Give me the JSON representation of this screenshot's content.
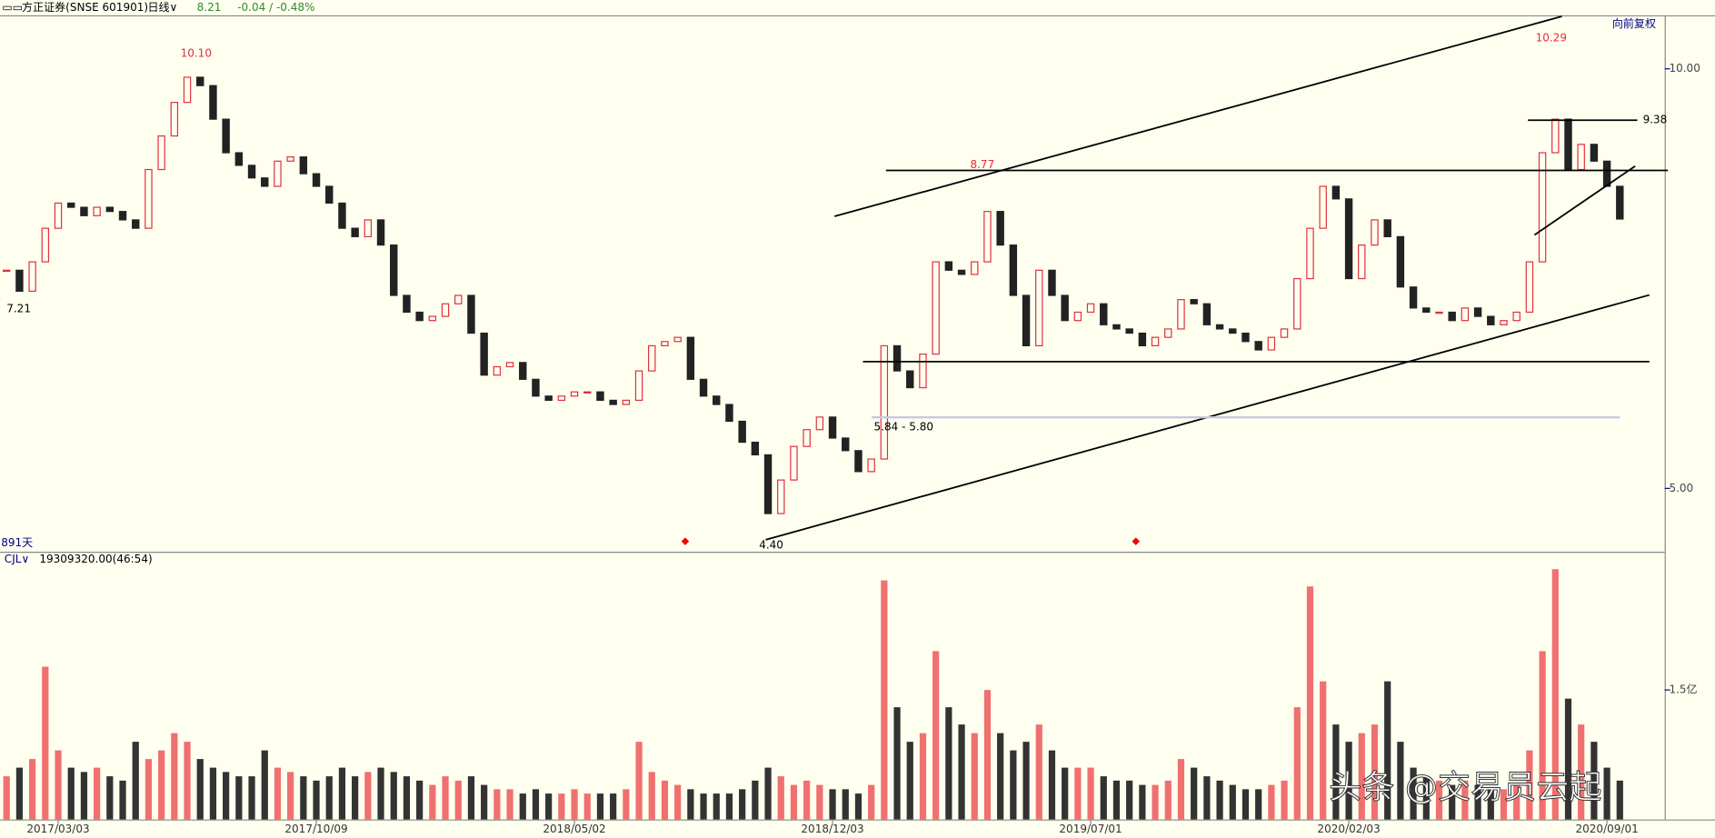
{
  "header": {
    "stock": "方正证券(SNSE 601901)",
    "period": "日线∨",
    "price": "8.21",
    "change": "-0.04 / -0.48%",
    "adjust": "向前复权",
    "days": "891天",
    "indicator": "CJL∨",
    "indicator_value": "19309320.00(46:54)"
  },
  "annotations": [
    "10.10",
    "7.21",
    "8.77",
    "10.29",
    "9.38",
    "5.84 - 5.80",
    "4.40"
  ],
  "watermark": "头条 @交易员云起",
  "chart_data": {
    "type": "candle-volume",
    "up_color": "#e0303a",
    "down_color": "#222222",
    "categories": [
      null,
      null,
      null,
      null,
      "2017/03/03",
      null,
      null,
      null,
      null,
      null,
      null,
      null,
      null,
      null,
      null,
      null,
      null,
      null,
      null,
      null,
      null,
      null,
      null,
      null,
      "2017/10/09",
      null,
      null,
      null,
      null,
      null,
      null,
      null,
      null,
      null,
      null,
      null,
      null,
      null,
      null,
      null,
      null,
      null,
      null,
      null,
      "2018/05/02",
      null,
      null,
      null,
      null,
      null,
      null,
      null,
      null,
      null,
      null,
      null,
      null,
      null,
      null,
      null,
      null,
      null,
      null,
      null,
      "2018/12/03",
      null,
      null,
      null,
      null,
      null,
      null,
      null,
      null,
      null,
      null,
      null,
      null,
      null,
      null,
      null,
      null,
      null,
      null,
      null,
      "2019/07/01",
      null,
      null,
      null,
      null,
      null,
      null,
      null,
      null,
      null,
      null,
      null,
      null,
      null,
      null,
      null,
      null,
      null,
      null,
      null,
      "2020/02/03",
      null,
      null,
      null,
      null,
      null,
      null,
      null,
      null,
      null,
      null,
      null,
      null,
      null,
      null,
      null,
      null,
      null,
      null,
      null,
      "2020/09/01"
    ],
    "price": {
      "ylim": [
        4.245,
        10.625
      ],
      "yticks": [
        {
          "value": 5,
          "label": "5.00"
        },
        {
          "value": 10,
          "label": "10.00"
        }
      ],
      "values": [
        7.6,
        7.35,
        7.7,
        8.1,
        8.4,
        8.35,
        8.25,
        8.35,
        8.3,
        8.2,
        8.1,
        8.8,
        9.2,
        9.6,
        9.9,
        9.8,
        9.4,
        9.0,
        8.85,
        8.7,
        8.6,
        8.9,
        8.95,
        8.75,
        8.6,
        8.4,
        8.1,
        8.0,
        8.2,
        7.9,
        7.3,
        7.1,
        7.0,
        7.05,
        7.2,
        7.3,
        6.85,
        6.35,
        6.45,
        6.5,
        6.3,
        6.1,
        6.05,
        6.1,
        6.15,
        6.15,
        6.05,
        6.0,
        6.05,
        6.4,
        6.7,
        6.75,
        6.8,
        6.3,
        6.1,
        6.0,
        5.8,
        5.55,
        5.4,
        4.7,
        5.1,
        5.5,
        5.7,
        5.85,
        5.6,
        5.45,
        5.2,
        5.35,
        6.7,
        6.4,
        6.2,
        6.6,
        7.7,
        7.6,
        7.55,
        7.7,
        8.3,
        7.9,
        7.3,
        6.7,
        7.6,
        7.3,
        7.0,
        7.1,
        7.2,
        6.95,
        6.9,
        6.85,
        6.7,
        6.8,
        6.9,
        7.25,
        7.2,
        6.95,
        6.9,
        6.85,
        6.75,
        6.65,
        6.8,
        6.9,
        7.5,
        8.1,
        8.6,
        8.45,
        7.5,
        7.9,
        8.2,
        8.0,
        7.4,
        7.15,
        7.1,
        7.1,
        7.0,
        7.15,
        7.05,
        6.95,
        7.0,
        7.1,
        7.7,
        9.0,
        9.4,
        8.8,
        9.1,
        8.9,
        8.6,
        8.21
      ]
    },
    "volume": {
      "ylim": [
        0,
        2.95
      ],
      "yticks": [
        {
          "value": 1.5,
          "label": "1.5亿"
        }
      ],
      "values": [
        0.5,
        0.6,
        0.7,
        1.77,
        0.8,
        0.6,
        0.55,
        0.6,
        0.5,
        0.45,
        0.9,
        0.7,
        0.8,
        1.0,
        0.9,
        0.7,
        0.6,
        0.55,
        0.5,
        0.5,
        0.8,
        0.6,
        0.55,
        0.5,
        0.45,
        0.5,
        0.6,
        0.5,
        0.55,
        0.6,
        0.55,
        0.5,
        0.45,
        0.4,
        0.5,
        0.45,
        0.5,
        0.4,
        0.35,
        0.35,
        0.3,
        0.35,
        0.3,
        0.3,
        0.35,
        0.3,
        0.3,
        0.3,
        0.35,
        0.9,
        0.55,
        0.45,
        0.4,
        0.35,
        0.3,
        0.3,
        0.3,
        0.35,
        0.45,
        0.6,
        0.5,
        0.4,
        0.45,
        0.4,
        0.35,
        0.35,
        0.3,
        0.4,
        2.77,
        1.3,
        0.9,
        1.0,
        1.95,
        1.3,
        1.1,
        1.0,
        1.5,
        1.0,
        0.8,
        0.9,
        1.1,
        0.8,
        0.6,
        0.6,
        0.6,
        0.5,
        0.45,
        0.45,
        0.4,
        0.4,
        0.45,
        0.7,
        0.6,
        0.5,
        0.45,
        0.4,
        0.35,
        0.35,
        0.4,
        0.45,
        1.3,
        2.7,
        1.6,
        1.1,
        0.9,
        1.0,
        1.1,
        1.6,
        0.9,
        0.6,
        0.5,
        0.45,
        0.4,
        0.45,
        0.4,
        0.35,
        0.35,
        0.4,
        0.8,
        1.95,
        2.9,
        1.4,
        1.1,
        0.9,
        0.6,
        0.45
      ]
    }
  }
}
